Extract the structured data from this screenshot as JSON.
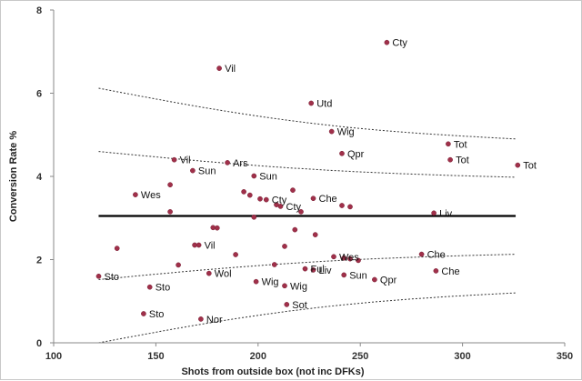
{
  "chart_data": {
    "type": "scatter",
    "title": "",
    "xlabel": "Shots from outside box (not inc DFKs)",
    "ylabel": "Conversion Rate %",
    "xlim": [
      100,
      350
    ],
    "ylim": [
      0,
      8
    ],
    "xticks": [
      "100",
      "150",
      "200",
      "250",
      "300",
      "350"
    ],
    "yticks": [
      "0",
      "2",
      "4",
      "6",
      "8"
    ],
    "grid": false,
    "legend": "none",
    "point_color": "#a0304a",
    "mean_line": {
      "y": 3.05,
      "x_range": [
        122,
        326
      ],
      "color": "#000000"
    },
    "bands": [
      {
        "x": [
          122,
          326
        ],
        "y": [
          6.12,
          4.9
        ]
      },
      {
        "x": [
          122,
          326
        ],
        "y": [
          4.6,
          3.98
        ]
      },
      {
        "x": [
          122,
          326
        ],
        "y": [
          1.52,
          2.13
        ]
      },
      {
        "x": [
          122,
          326
        ],
        "y": [
          0.0,
          1.2
        ]
      }
    ],
    "points": [
      {
        "x": 263,
        "y": 7.22,
        "label": "Cty"
      },
      {
        "x": 181,
        "y": 6.6,
        "label": "Vil"
      },
      {
        "x": 226,
        "y": 5.76,
        "label": "Utd"
      },
      {
        "x": 236,
        "y": 5.08,
        "label": "Wig"
      },
      {
        "x": 293,
        "y": 4.78,
        "label": "Tot"
      },
      {
        "x": 241,
        "y": 4.55,
        "label": "Qpr"
      },
      {
        "x": 159,
        "y": 4.4,
        "label": "Vil"
      },
      {
        "x": 294,
        "y": 4.4,
        "label": "Tot"
      },
      {
        "x": 185,
        "y": 4.33,
        "label": "Ars"
      },
      {
        "x": 327,
        "y": 4.27,
        "label": "Tot"
      },
      {
        "x": 168,
        "y": 4.14,
        "label": "Sun"
      },
      {
        "x": 198,
        "y": 4.01,
        "label": "Sun"
      },
      {
        "x": 157,
        "y": 3.8,
        "label": ""
      },
      {
        "x": 140,
        "y": 3.56,
        "label": "Wes"
      },
      {
        "x": 193,
        "y": 3.63,
        "label": ""
      },
      {
        "x": 196,
        "y": 3.55,
        "label": ""
      },
      {
        "x": 201,
        "y": 3.46,
        "label": ""
      },
      {
        "x": 204,
        "y": 3.44,
        "label": "Cty"
      },
      {
        "x": 209,
        "y": 3.32,
        "label": ""
      },
      {
        "x": 211,
        "y": 3.28,
        "label": "Cty"
      },
      {
        "x": 217,
        "y": 3.67,
        "label": ""
      },
      {
        "x": 221,
        "y": 3.15,
        "label": ""
      },
      {
        "x": 227,
        "y": 3.47,
        "label": "Che"
      },
      {
        "x": 241,
        "y": 3.3,
        "label": ""
      },
      {
        "x": 245,
        "y": 3.27,
        "label": ""
      },
      {
        "x": 157,
        "y": 3.15,
        "label": ""
      },
      {
        "x": 198,
        "y": 3.02,
        "label": ""
      },
      {
        "x": 286,
        "y": 3.12,
        "label": "Liv"
      },
      {
        "x": 178,
        "y": 2.77,
        "label": ""
      },
      {
        "x": 180,
        "y": 2.76,
        "label": ""
      },
      {
        "x": 218,
        "y": 2.72,
        "label": ""
      },
      {
        "x": 228,
        "y": 2.6,
        "label": ""
      },
      {
        "x": 131,
        "y": 2.27,
        "label": ""
      },
      {
        "x": 169,
        "y": 2.35,
        "label": ""
      },
      {
        "x": 171,
        "y": 2.35,
        "label": "Vil"
      },
      {
        "x": 213,
        "y": 2.32,
        "label": ""
      },
      {
        "x": 189,
        "y": 2.12,
        "label": ""
      },
      {
        "x": 237,
        "y": 2.07,
        "label": "Wes"
      },
      {
        "x": 242,
        "y": 2.04,
        "label": ""
      },
      {
        "x": 245,
        "y": 2.02,
        "label": ""
      },
      {
        "x": 249,
        "y": 1.98,
        "label": ""
      },
      {
        "x": 280,
        "y": 2.13,
        "label": "Che"
      },
      {
        "x": 161,
        "y": 1.87,
        "label": ""
      },
      {
        "x": 208,
        "y": 1.88,
        "label": ""
      },
      {
        "x": 122,
        "y": 1.6,
        "label": "Sto"
      },
      {
        "x": 176,
        "y": 1.67,
        "label": "Wol"
      },
      {
        "x": 223,
        "y": 1.78,
        "label": "Ful"
      },
      {
        "x": 227,
        "y": 1.75,
        "label": "Liv"
      },
      {
        "x": 242,
        "y": 1.63,
        "label": "Sun"
      },
      {
        "x": 257,
        "y": 1.52,
        "label": "Qpr"
      },
      {
        "x": 287,
        "y": 1.73,
        "label": "Che"
      },
      {
        "x": 147,
        "y": 1.34,
        "label": "Sto"
      },
      {
        "x": 199,
        "y": 1.47,
        "label": "Wig"
      },
      {
        "x": 213,
        "y": 1.37,
        "label": "Wig"
      },
      {
        "x": 214,
        "y": 0.92,
        "label": "Sot"
      },
      {
        "x": 144,
        "y": 0.7,
        "label": "Sto"
      },
      {
        "x": 172,
        "y": 0.57,
        "label": "Nor"
      }
    ]
  }
}
